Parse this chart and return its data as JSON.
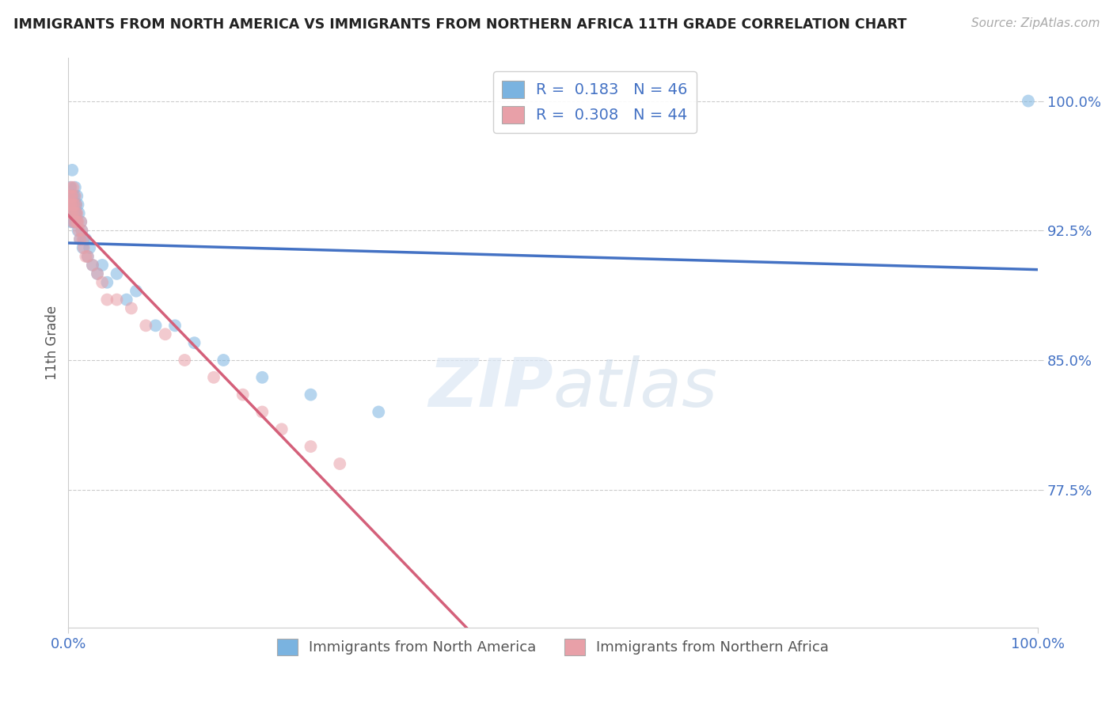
{
  "title": "IMMIGRANTS FROM NORTH AMERICA VS IMMIGRANTS FROM NORTHERN AFRICA 11TH GRADE CORRELATION CHART",
  "source": "Source: ZipAtlas.com",
  "ylabel": "11th Grade",
  "legend1_label": "Immigrants from North America",
  "legend2_label": "Immigrants from Northern Africa",
  "R_blue": 0.183,
  "N_blue": 46,
  "R_pink": 0.308,
  "N_pink": 44,
  "blue_color": "#7ab3e0",
  "pink_color": "#e8a0a8",
  "blue_line_color": "#4472c4",
  "pink_line_color": "#d4607a",
  "title_color": "#222222",
  "source_color": "#aaaaaa",
  "tick_color": "#4472c4",
  "grid_color": "#cccccc",
  "background_color": "#ffffff",
  "blue_scatter_x": [
    0.001,
    0.002,
    0.002,
    0.003,
    0.003,
    0.004,
    0.004,
    0.004,
    0.005,
    0.005,
    0.005,
    0.006,
    0.006,
    0.007,
    0.007,
    0.007,
    0.008,
    0.008,
    0.009,
    0.009,
    0.01,
    0.01,
    0.011,
    0.012,
    0.013,
    0.014,
    0.015,
    0.016,
    0.018,
    0.02,
    0.022,
    0.025,
    0.03,
    0.035,
    0.04,
    0.05,
    0.06,
    0.07,
    0.09,
    0.11,
    0.13,
    0.16,
    0.2,
    0.25,
    0.32,
    0.99
  ],
  "blue_scatter_y": [
    0.94,
    0.95,
    0.945,
    0.935,
    0.93,
    0.94,
    0.945,
    0.96,
    0.93,
    0.94,
    0.935,
    0.945,
    0.94,
    0.935,
    0.93,
    0.95,
    0.94,
    0.935,
    0.945,
    0.93,
    0.94,
    0.925,
    0.935,
    0.92,
    0.93,
    0.925,
    0.915,
    0.92,
    0.92,
    0.91,
    0.915,
    0.905,
    0.9,
    0.905,
    0.895,
    0.9,
    0.885,
    0.89,
    0.87,
    0.87,
    0.86,
    0.85,
    0.84,
    0.83,
    0.82,
    1.0
  ],
  "pink_scatter_x": [
    0.001,
    0.001,
    0.002,
    0.002,
    0.003,
    0.003,
    0.003,
    0.004,
    0.004,
    0.005,
    0.005,
    0.005,
    0.006,
    0.006,
    0.007,
    0.007,
    0.008,
    0.008,
    0.009,
    0.009,
    0.01,
    0.011,
    0.012,
    0.013,
    0.014,
    0.015,
    0.016,
    0.018,
    0.02,
    0.025,
    0.03,
    0.035,
    0.04,
    0.05,
    0.065,
    0.08,
    0.1,
    0.12,
    0.15,
    0.18,
    0.2,
    0.22,
    0.25,
    0.28
  ],
  "pink_scatter_y": [
    0.94,
    0.945,
    0.935,
    0.94,
    0.95,
    0.94,
    0.945,
    0.935,
    0.945,
    0.93,
    0.94,
    0.95,
    0.935,
    0.94,
    0.93,
    0.945,
    0.935,
    0.94,
    0.935,
    0.93,
    0.93,
    0.925,
    0.92,
    0.93,
    0.925,
    0.92,
    0.915,
    0.91,
    0.91,
    0.905,
    0.9,
    0.895,
    0.885,
    0.885,
    0.88,
    0.87,
    0.865,
    0.85,
    0.84,
    0.83,
    0.82,
    0.81,
    0.8,
    0.79
  ],
  "xmin": 0.0,
  "xmax": 1.0,
  "ymin": 0.695,
  "ymax": 1.025,
  "ytick_positions": [
    0.775,
    0.85,
    0.925,
    1.0
  ],
  "ytick_labels": [
    "77.5%",
    "85.0%",
    "92.5%",
    "100.0%"
  ],
  "xtick_positions": [
    0.0,
    1.0
  ],
  "xtick_labels": [
    "0.0%",
    "100.0%"
  ]
}
